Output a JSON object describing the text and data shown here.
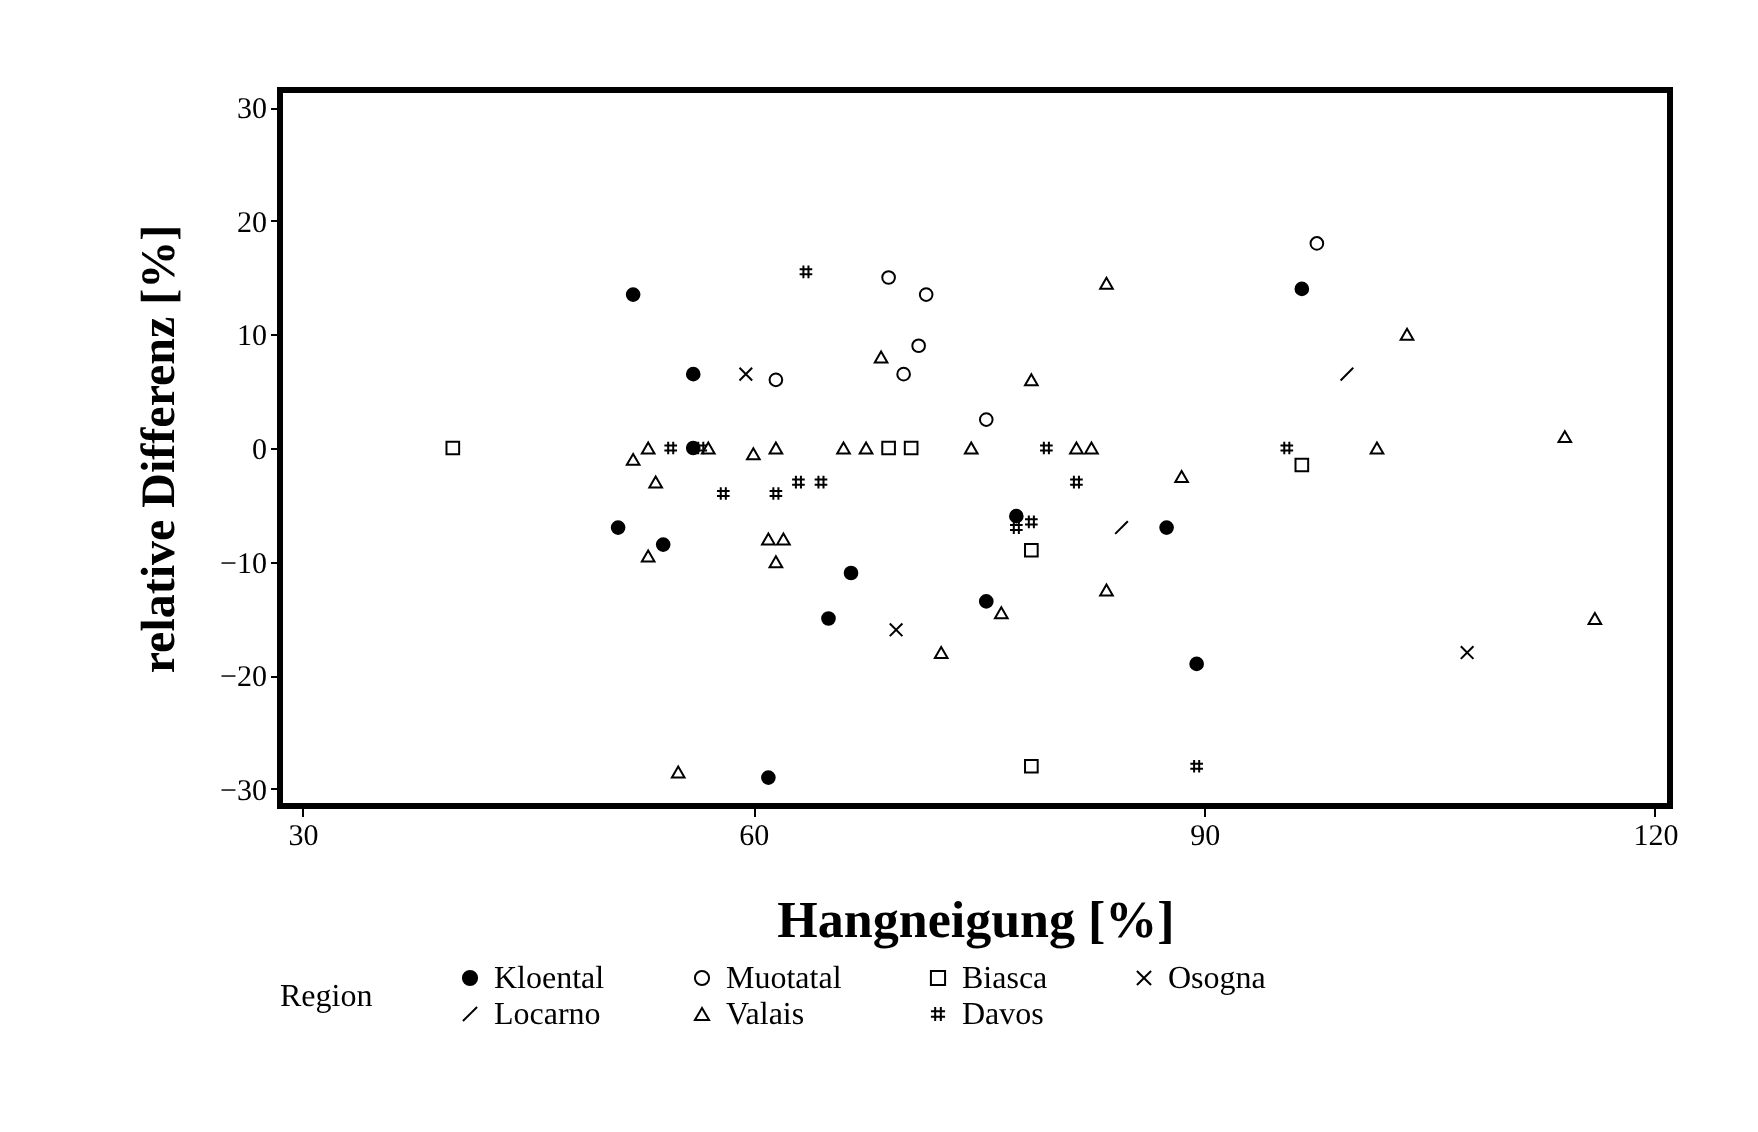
{
  "chart_data": {
    "type": "scatter",
    "xlabel": "Hangneigung [%]",
    "ylabel": "relative  Differenz  [%]",
    "legend_title": "Region",
    "legend": "bottom",
    "xlim": [
      28.5,
      121
    ],
    "ylim": [
      -31.5,
      31.5
    ],
    "xticks": [
      30,
      60,
      90,
      120
    ],
    "yticks": [
      -30,
      -20,
      -10,
      0,
      10,
      20,
      30
    ],
    "grid": false,
    "series": [
      {
        "name": "Kloental",
        "color": "#000000",
        "marker": "circle",
        "x": [
          52,
          56,
          56,
          51,
          54,
          61,
          66.5,
          65,
          75.5,
          77.5,
          87.5,
          89.5,
          96.5
        ],
        "values": [
          13.5,
          6.5,
          0,
          -7,
          -8.5,
          -29,
          -11,
          -15,
          -13.5,
          -6,
          -7,
          -19,
          14
        ]
      },
      {
        "name": "Muotatal",
        "color": "#000000",
        "marker": "circle",
        "x": [
          69,
          71.5,
          61.5,
          71,
          75.5,
          97.5,
          70
        ],
        "values": [
          15,
          13.5,
          6,
          9,
          2.5,
          18,
          6.5
        ]
      },
      {
        "name": "Biasca",
        "color": "#000000",
        "marker": "square",
        "x": [
          40,
          70.5,
          69,
          78.5,
          78.5,
          96.5
        ],
        "values": [
          0,
          0,
          0,
          -9,
          -28,
          -1.5
        ]
      },
      {
        "name": "Osogna",
        "color": "#000000",
        "marker": "cross",
        "x": [
          69.5,
          59.5,
          107.5
        ],
        "values": [
          -16,
          6.5,
          -18
        ]
      },
      {
        "name": "Locarno",
        "color": "#000000",
        "marker": "cross",
        "x": [
          84.5,
          99.5
        ],
        "values": [
          -7,
          6.5
        ]
      },
      {
        "name": "Valais",
        "color": "#000000",
        "marker": "triangle",
        "x": [
          53,
          52,
          53.5,
          53,
          60,
          61,
          55,
          57,
          61.5,
          66,
          67.5,
          74.5,
          81.5,
          82.5,
          62,
          61.5,
          83.5,
          68.5,
          78.5,
          88.5,
          83.5,
          76.5,
          72.5,
          103.5,
          101.5,
          114,
          116
        ],
        "values": [
          0,
          -1,
          -3,
          -9.5,
          -0.5,
          -8,
          -28.5,
          0,
          0,
          0,
          0,
          0,
          0,
          0,
          -8,
          -10,
          14.5,
          8,
          6,
          -2.5,
          -12.5,
          -14.5,
          -18,
          10,
          0,
          1,
          -15
        ]
      },
      {
        "name": "Davos",
        "color": "#000000",
        "marker": "cross",
        "x": [
          63.5,
          54.5,
          56.5,
          58,
          63,
          61.5,
          64.5,
          79.5,
          81.5,
          77.5,
          78.5,
          89.5,
          95.5
        ],
        "values": [
          15.5,
          0,
          0,
          -4,
          -3,
          -4,
          -3,
          0,
          -3,
          -7,
          -6.5,
          -28,
          0
        ]
      }
    ]
  }
}
